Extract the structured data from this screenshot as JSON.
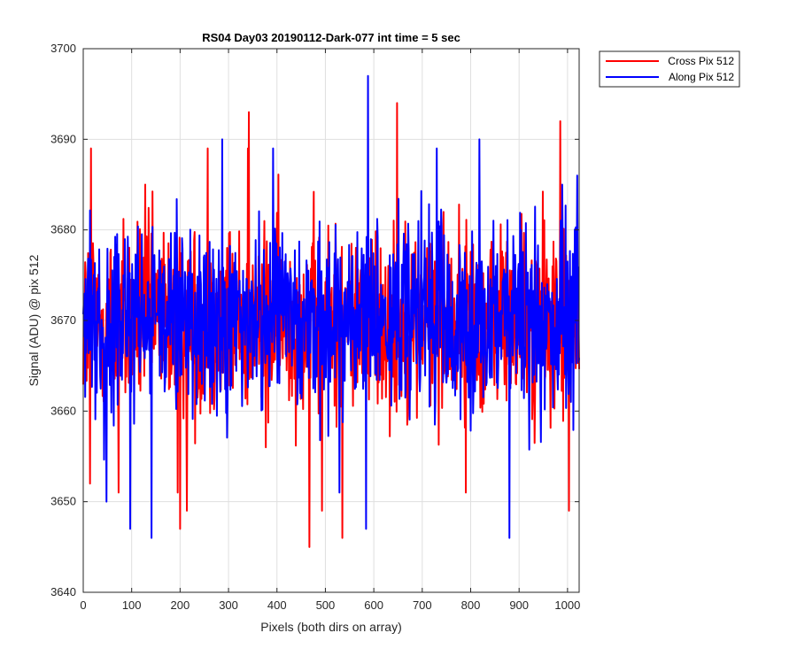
{
  "chart_data": {
    "type": "line",
    "title": "RS04 Day03 20190112-Dark-077 int time = 5 sec",
    "xlabel": "Pixels (both dirs on array)",
    "ylabel": "Signal (ADU) @ pix 512",
    "xlim": [
      0,
      1024
    ],
    "ylim": [
      3640,
      3700
    ],
    "xticks": [
      0,
      100,
      200,
      300,
      400,
      500,
      600,
      700,
      800,
      900,
      1000
    ],
    "yticks": [
      3640,
      3650,
      3660,
      3670,
      3680,
      3690,
      3700
    ],
    "grid": true,
    "legend_position": "outside-top-right",
    "series": [
      {
        "name": "Cross Pix 512",
        "color": "#ff0000",
        "mean": 3670,
        "notable_points": [
          {
            "x": 14,
            "y": 3652
          },
          {
            "x": 16,
            "y": 3689
          },
          {
            "x": 73,
            "y": 3651
          },
          {
            "x": 128,
            "y": 3685
          },
          {
            "x": 195,
            "y": 3651
          },
          {
            "x": 200,
            "y": 3647
          },
          {
            "x": 214,
            "y": 3649
          },
          {
            "x": 257,
            "y": 3689
          },
          {
            "x": 340,
            "y": 3689
          },
          {
            "x": 342,
            "y": 3693
          },
          {
            "x": 377,
            "y": 3656
          },
          {
            "x": 467,
            "y": 3645
          },
          {
            "x": 493,
            "y": 3649
          },
          {
            "x": 535,
            "y": 3646
          },
          {
            "x": 648,
            "y": 3694
          },
          {
            "x": 790,
            "y": 3651
          },
          {
            "x": 985,
            "y": 3692
          },
          {
            "x": 1003,
            "y": 3649
          }
        ]
      },
      {
        "name": "Along Pix 512",
        "color": "#0000ff",
        "mean": 3670,
        "notable_points": [
          {
            "x": 48,
            "y": 3650
          },
          {
            "x": 97,
            "y": 3647
          },
          {
            "x": 141,
            "y": 3646
          },
          {
            "x": 287,
            "y": 3690
          },
          {
            "x": 392,
            "y": 3689
          },
          {
            "x": 529,
            "y": 3651
          },
          {
            "x": 584,
            "y": 3647
          },
          {
            "x": 588,
            "y": 3697
          },
          {
            "x": 730,
            "y": 3689
          },
          {
            "x": 818,
            "y": 3690
          },
          {
            "x": 880,
            "y": 3646
          },
          {
            "x": 1020,
            "y": 3686
          }
        ]
      }
    ]
  }
}
